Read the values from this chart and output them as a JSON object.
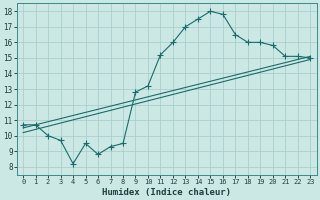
{
  "title": "",
  "xlabel": "Humidex (Indice chaleur)",
  "ylabel": "",
  "background_color": "#cce8e5",
  "grid_color": "#aacfcc",
  "line_color": "#1a6b6b",
  "xlim": [
    -0.5,
    23.5
  ],
  "ylim": [
    7.5,
    18.5
  ],
  "xticks": [
    0,
    1,
    2,
    3,
    4,
    5,
    6,
    7,
    8,
    9,
    10,
    11,
    12,
    13,
    14,
    15,
    16,
    17,
    18,
    19,
    20,
    21,
    22,
    23
  ],
  "yticks": [
    8,
    9,
    10,
    11,
    12,
    13,
    14,
    15,
    16,
    17,
    18
  ],
  "curve1_x": [
    0,
    1,
    2,
    3,
    4,
    5,
    6,
    7,
    8,
    9,
    10,
    11,
    12,
    13,
    14,
    15,
    16,
    17,
    18,
    19,
    20,
    21,
    22,
    23
  ],
  "curve1_y": [
    10.7,
    10.7,
    10.0,
    9.7,
    8.2,
    9.5,
    8.8,
    9.3,
    9.5,
    12.8,
    13.2,
    15.2,
    16.0,
    17.0,
    17.5,
    18.0,
    17.8,
    16.5,
    16.0,
    16.0,
    15.8,
    15.1,
    15.1,
    15.0
  ],
  "curve2_x": [
    0,
    23
  ],
  "curve2_y": [
    10.5,
    15.1
  ],
  "curve3_x": [
    0,
    23
  ],
  "curve3_y": [
    10.2,
    14.9
  ],
  "marker_size": 4,
  "line_width": 0.8
}
